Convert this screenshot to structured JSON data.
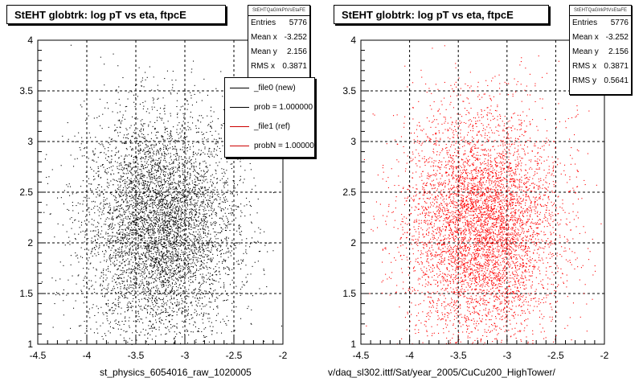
{
  "colors": {
    "data_left": "#000000",
    "data_right": "#ff0000",
    "grid": "#000000"
  },
  "chart_data": [
    {
      "type": "scatter",
      "title": "StEHT globtrk: log pT vs eta, ftpcE",
      "xlabel": "st_physics_6054016_raw_1020005",
      "ylabel": "",
      "xlim": [
        -4.5,
        -2
      ],
      "ylim": [
        1,
        4
      ],
      "xticks": [
        "-4.5",
        "-4",
        "-3.5",
        "-3",
        "-2.5",
        "-2"
      ],
      "yticks": [
        "1",
        "1.5",
        "2",
        "2.5",
        "3",
        "3.5",
        "4"
      ],
      "grid": true,
      "marker_color": "#000000",
      "distribution": {
        "entries": 5776,
        "mean_x": -3.252,
        "mean_y": 2.156,
        "rms_x": 0.3871,
        "rms_y": 0.5641
      },
      "stats": {
        "name": "StEHTQaGlrkPtVsEtaFE",
        "rows": [
          {
            "label": "Entries",
            "value": "5776"
          },
          {
            "label": "Mean x",
            "value": "-3.252"
          },
          {
            "label": "Mean y",
            "value": "2.156"
          },
          {
            "label": "RMS x",
            "value": "0.3871"
          }
        ]
      },
      "legend": {
        "placement": "right",
        "entries": [
          {
            "label": "_file0 (new)",
            "color": "#000000"
          },
          {
            "label": "prob = 1.000000",
            "color": "#000000"
          },
          {
            "label": "_file1 (ref)",
            "color": "#cc0000"
          },
          {
            "label": "probN = 1.000000",
            "color": "#cc0000"
          }
        ]
      }
    },
    {
      "type": "scatter",
      "title": "StEHT globtrk: log pT vs eta, ftpcE",
      "xlabel": "v/daq_sl302.ittf/Sat/year_2005/CuCu200_HighTower/",
      "ylabel": "",
      "xlim": [
        -4.5,
        -2
      ],
      "ylim": [
        1,
        4
      ],
      "xticks": [
        "-4.5",
        "-4",
        "-3.5",
        "-3",
        "-2.5",
        "-2"
      ],
      "yticks": [
        "1",
        "1.5",
        "2",
        "2.5",
        "3",
        "3.5",
        "4"
      ],
      "grid": true,
      "marker_color": "#ff0000",
      "distribution": {
        "entries": 5776,
        "mean_x": -3.252,
        "mean_y": 2.156,
        "rms_x": 0.3871,
        "rms_y": 0.5641
      },
      "stats": {
        "name": "StEHTQaGlrkPtVsEtaFE",
        "rows": [
          {
            "label": "Entries",
            "value": "5776"
          },
          {
            "label": "Mean x",
            "value": "-3.252"
          },
          {
            "label": "Mean y",
            "value": "2.156"
          },
          {
            "label": "RMS x",
            "value": "0.3871"
          },
          {
            "label": "RMS y",
            "value": "0.5641"
          }
        ]
      }
    }
  ]
}
